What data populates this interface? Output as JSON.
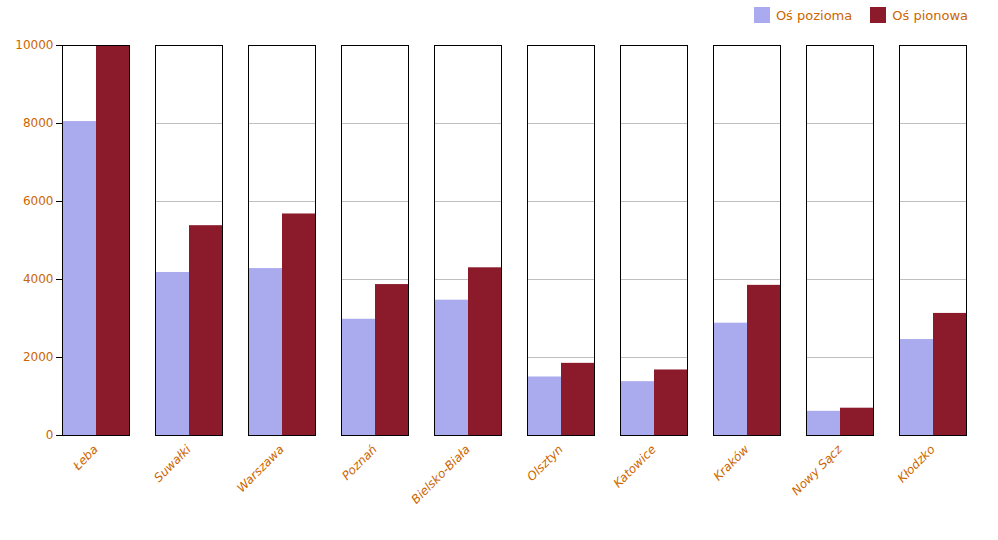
{
  "chart_data": {
    "type": "bar",
    "categories": [
      "Łeba",
      "Suwałki",
      "Warszawa",
      "Poznań",
      "Bielsko-Biała",
      "Olsztyn",
      "Katowice",
      "Kraków",
      "Nowy Sącz",
      "Kłodzko"
    ],
    "series": [
      {
        "name": "Oś pozioma",
        "color": "#aaaaee",
        "values": [
          8050,
          4180,
          4280,
          2980,
          3470,
          1500,
          1380,
          2880,
          620,
          2460
        ]
      },
      {
        "name": "Oś pionowa",
        "color": "#8b1a2a",
        "values": [
          10000,
          5380,
          5680,
          3870,
          4300,
          1850,
          1680,
          3850,
          700,
          3130
        ]
      }
    ],
    "ylim": [
      0,
      10000
    ],
    "yticks": [
      0,
      2000,
      4000,
      6000,
      8000,
      10000
    ],
    "grid": true,
    "legend": "upper right"
  }
}
